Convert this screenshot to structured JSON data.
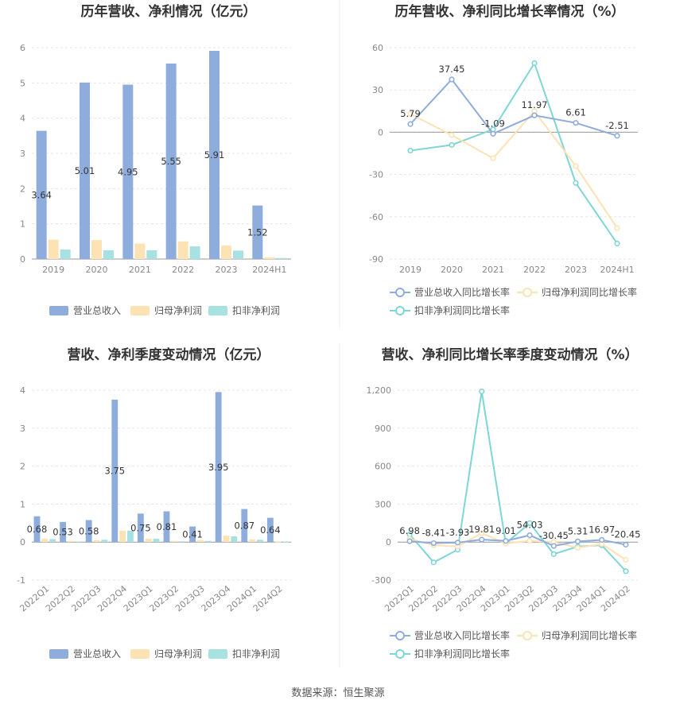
{
  "source": "数据来源：恒生聚源",
  "colors": {
    "revenue": "#8eacdc",
    "net_profit": "#fde2b4",
    "deducted": "#a7e1e1",
    "line_revenue": "#8eacdc",
    "line_net": "#fde2b4",
    "line_deducted": "#7fd6d6",
    "grid": "#e6e6e6",
    "axis": "#999999"
  },
  "chart_data": [
    {
      "type": "bar",
      "title": "历年营收、净利情况（亿元）",
      "categories": [
        "2019",
        "2020",
        "2021",
        "2022",
        "2023",
        "2024H1"
      ],
      "ylim": [
        0,
        6
      ],
      "yticks": [
        0,
        1,
        2,
        3,
        4,
        5,
        6
      ],
      "series": [
        {
          "name": "营业总收入",
          "values": [
            3.64,
            5.01,
            4.95,
            5.55,
            5.91,
            1.52
          ],
          "labels": [
            "3.64",
            "5.01",
            "4.95",
            "5.55",
            "5.91",
            "1.52"
          ]
        },
        {
          "name": "归母净利润",
          "values": [
            0.55,
            0.54,
            0.44,
            0.5,
            0.38,
            0.05
          ]
        },
        {
          "name": "扣非净利润",
          "values": [
            0.27,
            0.25,
            0.25,
            0.36,
            0.24,
            0.03
          ]
        }
      ],
      "legend": "bottom",
      "grid": true
    },
    {
      "type": "line",
      "title": "历年营收、净利同比增长率情况（%）",
      "categories": [
        "2019",
        "2020",
        "2021",
        "2022",
        "2023",
        "2024H1"
      ],
      "ylim": [
        -90,
        60
      ],
      "yticks": [
        -90,
        -60,
        -30,
        0,
        30,
        60
      ],
      "series": [
        {
          "name": "营业总收入同比增长率",
          "values": [
            5.79,
            37.45,
            -1.09,
            11.97,
            6.61,
            -2.51
          ],
          "labels": [
            "5.79",
            "37.45",
            "-1.09",
            "11.97",
            "6.61",
            "-2.51"
          ]
        },
        {
          "name": "归母净利润同比增长率",
          "values": [
            13.0,
            -2.0,
            -18.5,
            15.0,
            -24.0,
            -68.0
          ]
        },
        {
          "name": "扣非净利润同比增长率",
          "values": [
            -13.0,
            -9.0,
            2.0,
            49.0,
            -36.0,
            -79.0
          ]
        }
      ],
      "legend": "bottom",
      "grid": true
    },
    {
      "type": "bar",
      "title": "营收、净利季度变动情况（亿元）",
      "categories": [
        "2022Q1",
        "2022Q2",
        "2022Q3",
        "2022Q4",
        "2023Q1",
        "2023Q2",
        "2023Q3",
        "2023Q4",
        "2024Q1",
        "2024Q2"
      ],
      "ylim": [
        -1,
        4
      ],
      "yticks": [
        -1,
        0,
        1,
        2,
        3,
        4
      ],
      "series": [
        {
          "name": "营业总收入",
          "values": [
            0.68,
            0.53,
            0.58,
            3.75,
            0.75,
            0.81,
            0.41,
            3.95,
            0.87,
            0.64
          ],
          "labels": [
            "0.68",
            "0.53",
            "0.58",
            "3.75",
            "0.75",
            "0.81",
            "0.41",
            "3.95",
            "0.87",
            "0.64"
          ]
        },
        {
          "name": "归母净利润",
          "values": [
            0.09,
            0.03,
            0.05,
            0.3,
            0.09,
            0.03,
            0.05,
            0.17,
            0.07,
            0.01
          ]
        },
        {
          "name": "扣非净利润",
          "values": [
            0.08,
            -0.02,
            0.06,
            0.3,
            0.09,
            0.02,
            0.03,
            0.15,
            0.06,
            0.01
          ]
        }
      ],
      "legend": "bottom",
      "grid": true
    },
    {
      "type": "line",
      "title": "营收、净利同比增长率季度变动情况（%）",
      "categories": [
        "2022Q1",
        "2022Q2",
        "2022Q3",
        "2022Q4",
        "2023Q1",
        "2023Q2",
        "2023Q3",
        "2023Q4",
        "2024Q1",
        "2024Q2"
      ],
      "ylim": [
        -300,
        1200
      ],
      "yticks": [
        -300,
        0,
        300,
        600,
        900,
        1200
      ],
      "ytick_labels": [
        "-300",
        "0",
        "300",
        "600",
        "900",
        "1,200"
      ],
      "series": [
        {
          "name": "营业总收入同比增长率",
          "values": [
            6.98,
            -8.41,
            -3.93,
            19.81,
            9.01,
            54.03,
            -30.45,
            5.31,
            16.97,
            -20.45
          ],
          "labels": [
            "6.98",
            "-8.41",
            "-3.93",
            "19.81",
            "9.01",
            "54.03",
            "-30.45",
            "5.31",
            "16.97",
            "-20.45"
          ]
        },
        {
          "name": "归母净利润同比增长率",
          "values": [
            25,
            -25,
            -35,
            70,
            -10,
            10,
            0,
            -45,
            -15,
            -140
          ]
        },
        {
          "name": "扣非净利润同比增长率",
          "values": [
            60,
            -160,
            -60,
            1190,
            -10,
            150,
            -95,
            -35,
            -25,
            -230
          ]
        }
      ],
      "legend": "bottom",
      "grid": true
    }
  ]
}
